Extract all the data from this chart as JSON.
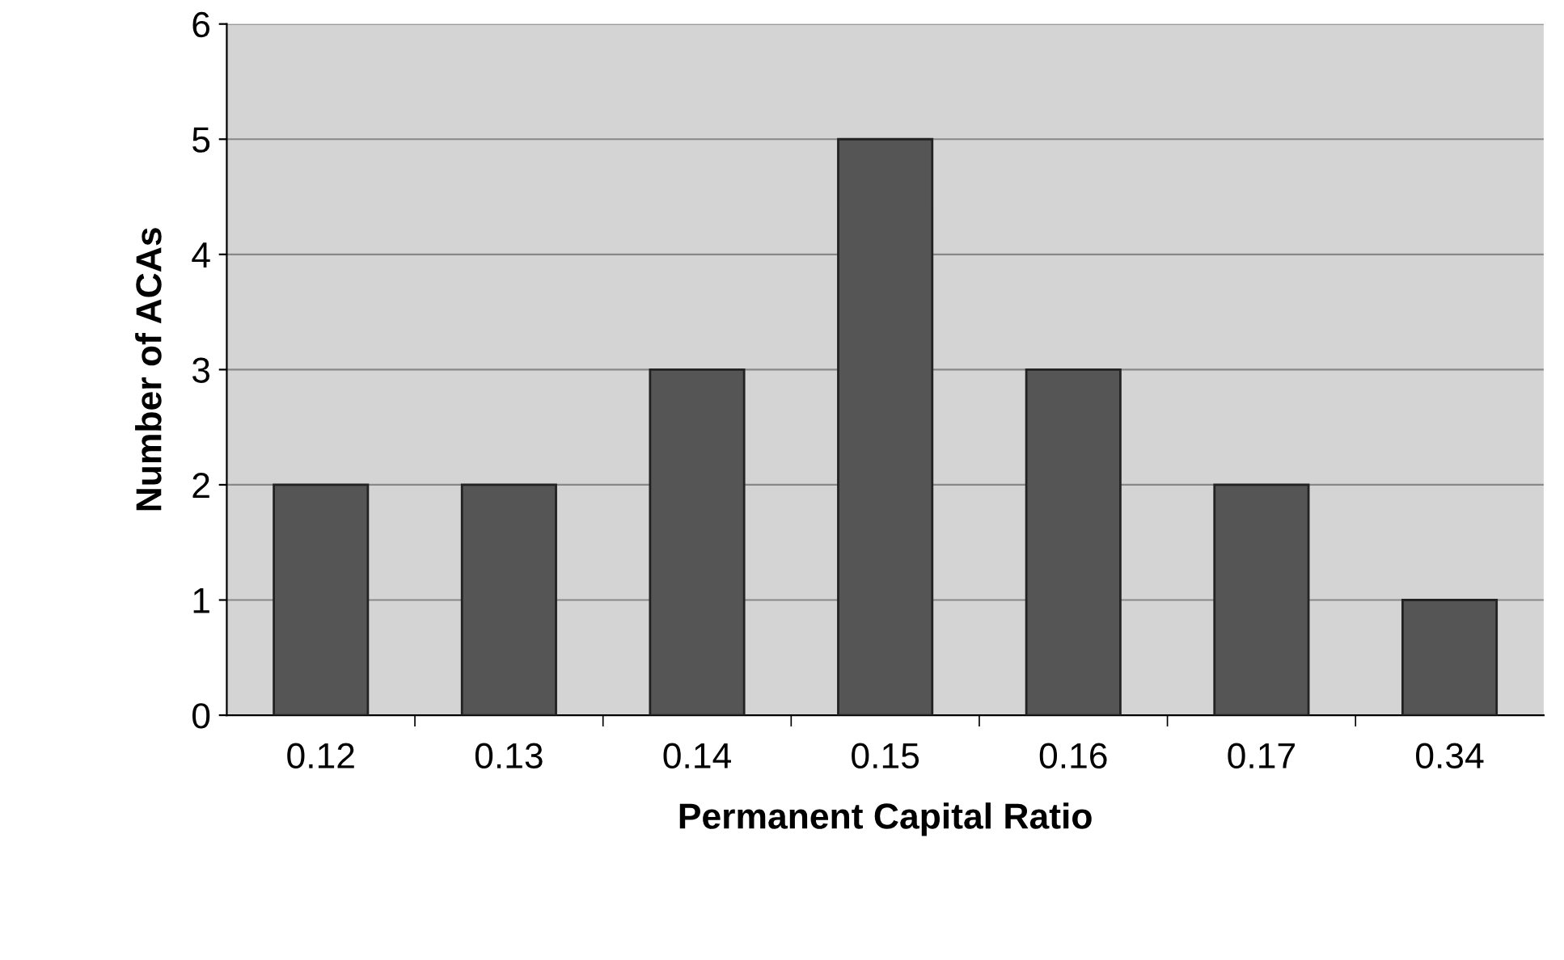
{
  "chart_data": {
    "type": "bar",
    "xlabel": "Permanent Capital Ratio",
    "ylabel": "Number of ACAs",
    "categories": [
      "0.12",
      "0.13",
      "0.14",
      "0.15",
      "0.16",
      "0.17",
      "0.34"
    ],
    "values": [
      2,
      2,
      3,
      5,
      3,
      2,
      1
    ],
    "color": "#555555",
    "ylim": [
      0,
      6
    ],
    "yticks": [
      0,
      1,
      2,
      3,
      4,
      5,
      6
    ],
    "grid": "y",
    "legend": false
  }
}
